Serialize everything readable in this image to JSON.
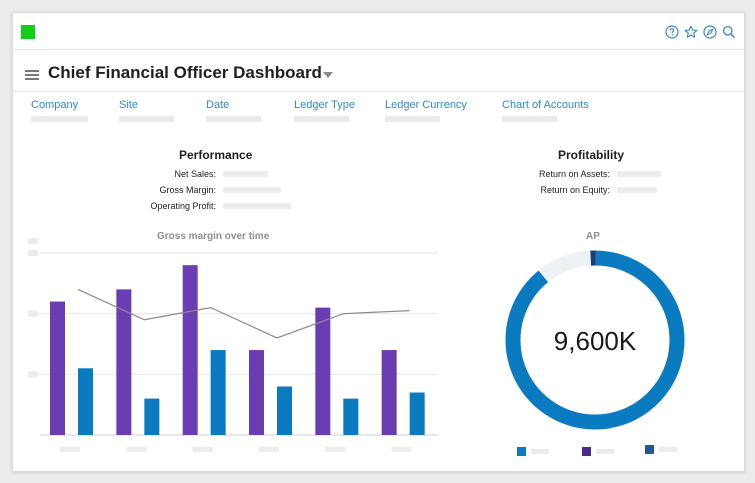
{
  "header": {
    "title": "Chief Financial Officer Dashboard",
    "logo_color": "#0fd015",
    "icons": [
      "help-icon",
      "star-icon",
      "compass-icon",
      "search-icon"
    ]
  },
  "filters": [
    {
      "label": "Company"
    },
    {
      "label": "Site"
    },
    {
      "label": "Date"
    },
    {
      "label": "Ledger Type"
    },
    {
      "label": "Ledger Currency"
    },
    {
      "label": "Chart of Accounts"
    }
  ],
  "performance": {
    "title": "Performance",
    "metrics": [
      {
        "label": "Net Sales:"
      },
      {
        "label": "Gross Margin:"
      },
      {
        "label": "Operating Profit:"
      }
    ]
  },
  "profitability": {
    "title": "Profitability",
    "metrics": [
      {
        "label": "Return on Assets:"
      },
      {
        "label": "Return on Equity:"
      }
    ]
  },
  "chart_data": [
    {
      "type": "bar",
      "title": "Gross margin over time",
      "colors": {
        "purple": "#6a3db3",
        "blue": "#0b7bc1",
        "line": "#8a8a8a",
        "grid": "#e6e6e6"
      },
      "ylim": [
        0,
        3
      ],
      "grid": true,
      "series": [
        {
          "type": "bar",
          "values": [
            2.2,
            2.4,
            2.8,
            1.4,
            2.1,
            1.4
          ]
        },
        {
          "type": "bar",
          "values": [
            1.1,
            0.6,
            1.4,
            0.8,
            0.6,
            0.7
          ]
        },
        {
          "type": "line",
          "values": [
            2.4,
            1.9,
            2.1,
            1.6,
            2.0,
            2.05
          ]
        }
      ]
    },
    {
      "type": "pie",
      "title": "AP",
      "center_label": "9,600K",
      "colors": {
        "main": "#0b7bc1",
        "rest": "#eef2f5",
        "thin": "#1b3f73"
      },
      "slices": [
        {
          "value": 89
        },
        {
          "value": 10
        },
        {
          "value": 1
        }
      ],
      "legend_colors": [
        "#0b7bc1",
        "#4c2a8e",
        "#1c5a9a"
      ]
    }
  ]
}
